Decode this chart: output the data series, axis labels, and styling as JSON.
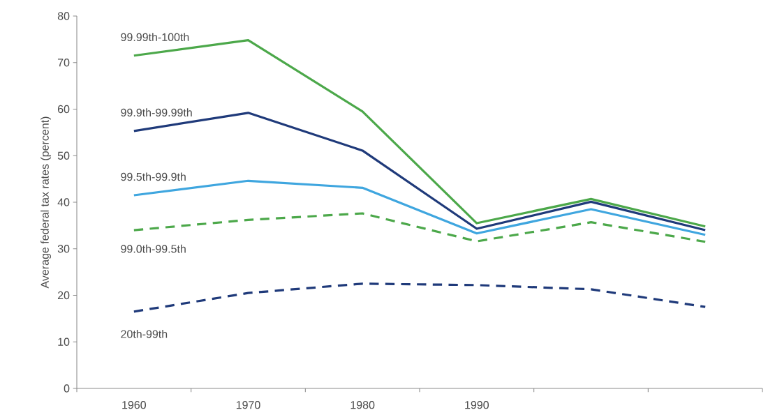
{
  "chart_data": {
    "type": "line",
    "ylabel": "Average federal tax rates (percent)",
    "categories": [
      "1960",
      "1970",
      "1980",
      "1990",
      null,
      null
    ],
    "series": [
      {
        "name": "99.99th-100th",
        "color": "#4ca84a",
        "line_style": "solid",
        "values": [
          71.5,
          74.8,
          59.5,
          35.5,
          40.7,
          34.8
        ]
      },
      {
        "name": "99.9th-99.99th",
        "color": "#1f3a7a",
        "line_style": "solid",
        "values": [
          55.3,
          59.2,
          51.1,
          34.3,
          40.1,
          34.0
        ]
      },
      {
        "name": "99.5th-99.9th",
        "color": "#3fa6df",
        "line_style": "solid",
        "values": [
          41.5,
          44.6,
          43.1,
          33.3,
          38.5,
          33.0
        ]
      },
      {
        "name": "99.0th-99.5th",
        "color": "#4ca84a",
        "line_style": "dashed",
        "values": [
          34.0,
          36.2,
          37.6,
          31.6,
          35.7,
          31.5
        ]
      },
      {
        "name": "20th-99th",
        "color": "#1f3a7a",
        "line_style": "dashed",
        "values": [
          16.5,
          20.5,
          22.5,
          22.2,
          21.3,
          17.5
        ]
      }
    ],
    "ylim": [
      0,
      80
    ],
    "yticks": [
      0,
      10,
      20,
      30,
      40,
      50,
      60,
      70,
      80
    ],
    "grid": false,
    "legend": false,
    "marker": "none"
  }
}
